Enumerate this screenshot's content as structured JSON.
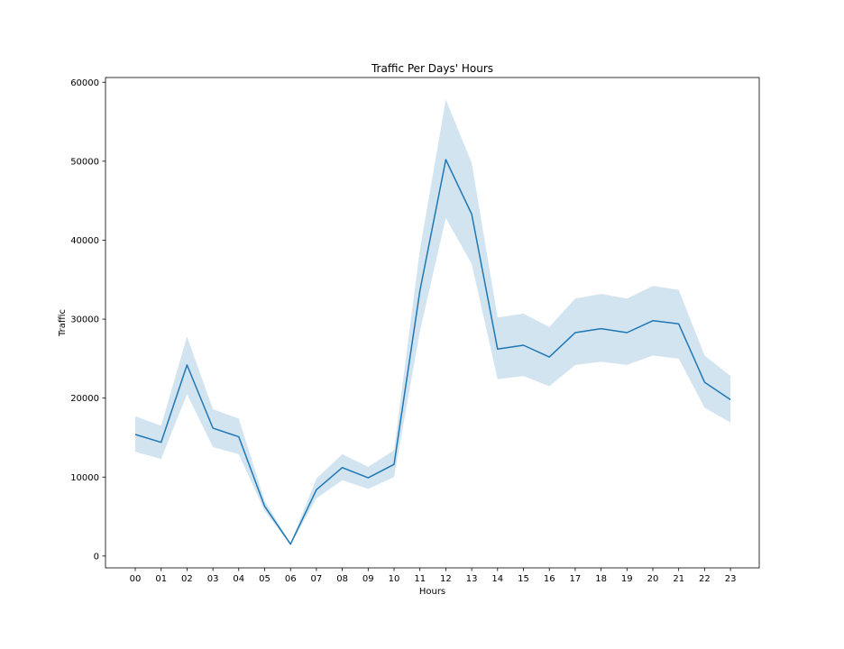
{
  "chart_data": {
    "type": "line",
    "title": "Traffic Per Days' Hours",
    "xlabel": "Hours",
    "ylabel": "Traffic",
    "categories": [
      "00",
      "01",
      "02",
      "03",
      "04",
      "05",
      "06",
      "07",
      "08",
      "09",
      "10",
      "11",
      "12",
      "13",
      "14",
      "15",
      "16",
      "17",
      "18",
      "19",
      "20",
      "21",
      "22",
      "23"
    ],
    "ylim": [
      -1500,
      60600
    ],
    "yticks": [
      0,
      10000,
      20000,
      30000,
      40000,
      50000,
      60000
    ],
    "grid": false,
    "series": [
      {
        "values": [
          15400,
          14400,
          24200,
          16200,
          15100,
          6300,
          1500,
          8400,
          11200,
          9900,
          11600,
          33600,
          50200,
          43300,
          26200,
          26700,
          25200,
          28300,
          28800,
          28300,
          29800,
          29400,
          22000,
          19800
        ],
        "lower": [
          13200,
          12300,
          20500,
          13800,
          12900,
          5700,
          1400,
          7300,
          9600,
          8500,
          10000,
          28500,
          42800,
          37000,
          22400,
          22800,
          21500,
          24200,
          24600,
          24200,
          25400,
          25000,
          18800,
          16900
        ],
        "upper": [
          17700,
          16500,
          27800,
          18600,
          17400,
          7000,
          1600,
          9800,
          12900,
          11300,
          13400,
          38800,
          57800,
          49800,
          30200,
          30700,
          29000,
          32600,
          33200,
          32600,
          34200,
          33700,
          25400,
          22800
        ]
      }
    ],
    "colors": {
      "line": "#1f77b4",
      "band": "#1f77b4"
    }
  }
}
